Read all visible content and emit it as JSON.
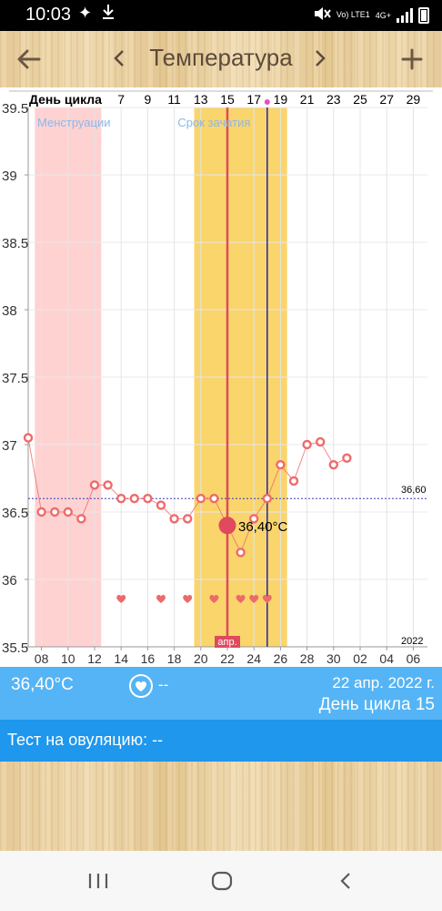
{
  "status_bar": {
    "time": "10:03",
    "network_label": "Vo) LTE1",
    "network_type": "4G+",
    "icons": [
      "sparkle-icon",
      "download-icon",
      "mute-icon",
      "signal-icon",
      "battery-icon"
    ]
  },
  "toolbar": {
    "title": "Температура",
    "back_icon": "arrow-left-icon",
    "prev_icon": "chevron-left-icon",
    "next_icon": "chevron-right-icon",
    "add_icon": "plus-icon"
  },
  "chart_data": {
    "type": "line",
    "title": "",
    "ylim": [
      35.5,
      39.5
    ],
    "y_ticks": [
      "35.5",
      "36",
      "36.5",
      "37",
      "37.5",
      "38",
      "38.5",
      "39",
      "39.5"
    ],
    "cycle_header_label": "День цикла",
    "cycle_day_labels": [
      "7",
      "9",
      "11",
      "13",
      "15",
      "17",
      "19",
      "21",
      "23",
      "25",
      "27",
      "29"
    ],
    "date_labels": [
      "08",
      "10",
      "12",
      "14",
      "16",
      "18",
      "20",
      "22",
      "24",
      "26",
      "28",
      "30",
      "02",
      "04",
      "06"
    ],
    "menstruation_label": "Менструации",
    "fertile_label": "Срок зачатия",
    "menstruation_days": [
      1,
      5
    ],
    "fertile_days": [
      13,
      19
    ],
    "selected_day": 15,
    "ovulation_day": 18,
    "coverline": 36.6,
    "coverline_label": "36,60",
    "year_label": "2022",
    "month_label": "апр.",
    "selected_value_label": "36,40°C",
    "series": [
      {
        "values": [
          {
            "day": 0,
            "temp": 37.05
          },
          {
            "day": 1,
            "temp": 36.5
          },
          {
            "day": 2,
            "temp": 36.5
          },
          {
            "day": 3,
            "temp": 36.5
          },
          {
            "day": 4,
            "temp": 36.45
          },
          {
            "day": 5,
            "temp": 36.7
          },
          {
            "day": 6,
            "temp": 36.7
          },
          {
            "day": 7,
            "temp": 36.6
          },
          {
            "day": 8,
            "temp": 36.6
          },
          {
            "day": 9,
            "temp": 36.6
          },
          {
            "day": 10,
            "temp": 36.55
          },
          {
            "day": 11,
            "temp": 36.45
          },
          {
            "day": 12,
            "temp": 36.45
          },
          {
            "day": 13,
            "temp": 36.6
          },
          {
            "day": 14,
            "temp": 36.6
          },
          {
            "day": 15,
            "temp": 36.4
          },
          {
            "day": 16,
            "temp": 36.2
          },
          {
            "day": 17,
            "temp": 36.45
          },
          {
            "day": 18,
            "temp": 36.6
          },
          {
            "day": 19,
            "temp": 36.85
          },
          {
            "day": 20,
            "temp": 36.73
          },
          {
            "day": 21,
            "temp": 37.0
          },
          {
            "day": 22,
            "temp": 37.02
          },
          {
            "day": 23,
            "temp": 36.85
          },
          {
            "day": 24,
            "temp": 36.9
          }
        ]
      }
    ],
    "intercourse_days": [
      7,
      10,
      12,
      14,
      16,
      17,
      18
    ],
    "colors": {
      "menstruation": "#ffd2d2",
      "fertile": "#f9d56c",
      "temp_line": "#ef6a6a",
      "selected_line": "#e0495e",
      "ovulation_line": "#2f2fa0",
      "coverline": "#3b3bb0",
      "heart": "#ee6a6a"
    }
  },
  "info": {
    "temperature": "36,40°C",
    "heart_value": "--",
    "date": "22 апр. 2022 г.",
    "cycle_day": "День цикла 15"
  },
  "ovulation_test": {
    "label": "Тест на овуляцию: --"
  },
  "nav": {
    "icons": [
      "recent-apps-icon",
      "home-icon",
      "back-icon"
    ]
  }
}
